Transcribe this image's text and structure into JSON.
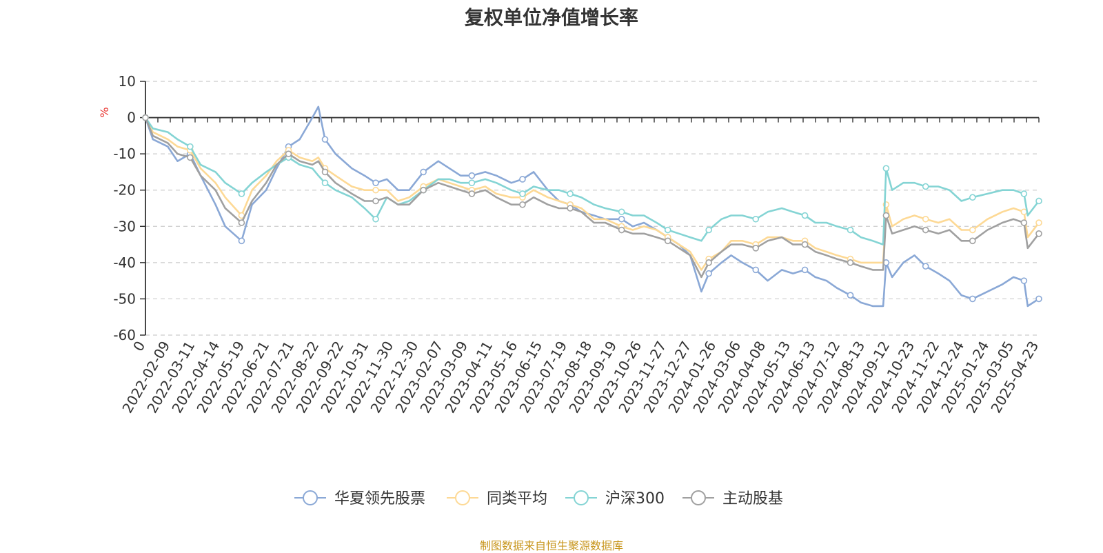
{
  "title": "复权单位净值增长率",
  "source": "制图数据来自恒生聚源数据库",
  "colors": {
    "华夏领先股票": "#8aa8d6",
    "同类平均": "#fdd995",
    "沪深300": "#84d4d4",
    "主动股基": "#a0a0a0",
    "unit": "#e8322d"
  },
  "chart_data": {
    "type": "line",
    "title": "复权单位净值增长率",
    "ylabel": "%",
    "ylim": [
      -60,
      10
    ],
    "yticks": [
      10,
      0,
      -10,
      -20,
      -30,
      -40,
      -50,
      -60
    ],
    "grid": true,
    "legend_position": "bottom",
    "x_tick_labels": [
      "0",
      "2022-02-09",
      "2022-03-11",
      "2022-04-14",
      "2022-05-19",
      "2022-06-21",
      "2022-07-21",
      "2022-08-22",
      "2022-09-22",
      "2022-10-31",
      "2022-11-30",
      "2022-12-30",
      "2023-02-07",
      "2023-03-09",
      "2023-04-11",
      "2023-05-16",
      "2023-06-15",
      "2023-07-19",
      "2023-08-18",
      "2023-09-19",
      "2023-10-26",
      "2023-11-27",
      "2023-12-27",
      "2024-01-26",
      "2024-03-06",
      "2024-04-08",
      "2024-05-13",
      "2024-06-13",
      "2024-07-12",
      "2024-08-13",
      "2024-09-12",
      "2024-10-23",
      "2024-11-22",
      "2024-12-24",
      "2025-01-24",
      "2025-03-05",
      "2025-04-23"
    ],
    "x": [
      "2022-01-10",
      "2022-01-20",
      "2022-02-09",
      "2022-02-22",
      "2022-03-11",
      "2022-03-25",
      "2022-04-14",
      "2022-04-27",
      "2022-05-19",
      "2022-06-02",
      "2022-06-21",
      "2022-07-05",
      "2022-07-21",
      "2022-08-05",
      "2022-08-22",
      "2022-08-30",
      "2022-09-08",
      "2022-09-22",
      "2022-10-14",
      "2022-10-31",
      "2022-11-15",
      "2022-11-30",
      "2022-12-15",
      "2022-12-30",
      "2023-01-18",
      "2023-02-07",
      "2023-02-22",
      "2023-03-09",
      "2023-03-24",
      "2023-04-11",
      "2023-04-26",
      "2023-05-16",
      "2023-05-31",
      "2023-06-15",
      "2023-07-04",
      "2023-07-19",
      "2023-08-03",
      "2023-08-18",
      "2023-09-04",
      "2023-09-19",
      "2023-10-11",
      "2023-10-26",
      "2023-11-10",
      "2023-11-27",
      "2023-12-12",
      "2023-12-27",
      "2024-01-11",
      "2024-01-26",
      "2024-02-05",
      "2024-02-22",
      "2024-03-06",
      "2024-03-21",
      "2024-04-08",
      "2024-04-24",
      "2024-05-13",
      "2024-05-28",
      "2024-06-13",
      "2024-06-27",
      "2024-07-12",
      "2024-07-26",
      "2024-08-13",
      "2024-08-27",
      "2024-09-12",
      "2024-09-26",
      "2024-09-30",
      "2024-10-08",
      "2024-10-23",
      "2024-11-07",
      "2024-11-22",
      "2024-12-09",
      "2024-12-24",
      "2025-01-09",
      "2025-01-24",
      "2025-02-13",
      "2025-03-05",
      "2025-03-20",
      "2025-04-03",
      "2025-04-08",
      "2025-04-23"
    ],
    "series": [
      {
        "name": "华夏领先股票",
        "values": [
          0,
          -6,
          -8,
          -12,
          -10,
          -16,
          -24,
          -30,
          -34,
          -24,
          -20,
          -14,
          -8,
          -6,
          0,
          3,
          -6,
          -10,
          -14,
          -16,
          -18,
          -17,
          -20,
          -20,
          -15,
          -12,
          -14,
          -16,
          -16,
          -15,
          -16,
          -18,
          -17,
          -15,
          -20,
          -23,
          -24,
          -26,
          -27,
          -28,
          -28,
          -30,
          -29,
          -31,
          -33,
          -35,
          -38,
          -48,
          -43,
          -40,
          -38,
          -40,
          -42,
          -45,
          -42,
          -43,
          -42,
          -44,
          -45,
          -47,
          -49,
          -51,
          -52,
          -52,
          -40,
          -44,
          -40,
          -38,
          -41,
          -43,
          -45,
          -49,
          -50,
          -48,
          -46,
          -44,
          -45,
          -52,
          -50
        ]
      },
      {
        "name": "同类平均",
        "values": [
          0,
          -4,
          -6,
          -8,
          -9,
          -14,
          -18,
          -22,
          -27,
          -20,
          -16,
          -12,
          -9,
          -11,
          -12,
          -11,
          -14,
          -16,
          -19,
          -20,
          -20,
          -20,
          -23,
          -22,
          -19,
          -17,
          -18,
          -19,
          -20,
          -19,
          -21,
          -22,
          -22,
          -20,
          -22,
          -23,
          -24,
          -25,
          -28,
          -28,
          -30,
          -31,
          -30,
          -31,
          -33,
          -35,
          -37,
          -42,
          -39,
          -37,
          -34,
          -34,
          -35,
          -33,
          -33,
          -34,
          -34,
          -36,
          -37,
          -38,
          -39,
          -40,
          -40,
          -40,
          -24,
          -30,
          -28,
          -27,
          -28,
          -29,
          -28,
          -31,
          -31,
          -28,
          -26,
          -25,
          -26,
          -33,
          -29
        ]
      },
      {
        "name": "沪深300",
        "values": [
          0,
          -3,
          -4,
          -6,
          -8,
          -13,
          -15,
          -18,
          -21,
          -18,
          -15,
          -13,
          -11,
          -13,
          -14,
          -16,
          -18,
          -20,
          -22,
          -25,
          -28,
          -22,
          -24,
          -23,
          -20,
          -17,
          -17,
          -18,
          -18,
          -17,
          -18,
          -20,
          -21,
          -19,
          -20,
          -20,
          -21,
          -22,
          -24,
          -25,
          -26,
          -27,
          -27,
          -29,
          -31,
          -32,
          -33,
          -34,
          -31,
          -28,
          -27,
          -27,
          -28,
          -26,
          -25,
          -26,
          -27,
          -29,
          -29,
          -30,
          -31,
          -33,
          -34,
          -35,
          -14,
          -20,
          -18,
          -18,
          -19,
          -19,
          -20,
          -23,
          -22,
          -21,
          -20,
          -20,
          -21,
          -27,
          -23
        ]
      },
      {
        "name": "主动股基",
        "values": [
          0,
          -5,
          -7,
          -10,
          -11,
          -16,
          -20,
          -25,
          -29,
          -23,
          -18,
          -13,
          -10,
          -12,
          -13,
          -12,
          -15,
          -18,
          -21,
          -23,
          -23,
          -22,
          -24,
          -24,
          -20,
          -18,
          -19,
          -20,
          -21,
          -20,
          -22,
          -24,
          -24,
          -22,
          -24,
          -25,
          -25,
          -26,
          -29,
          -29,
          -31,
          -32,
          -32,
          -33,
          -34,
          -36,
          -38,
          -44,
          -40,
          -37,
          -35,
          -35,
          -36,
          -34,
          -33,
          -35,
          -35,
          -37,
          -38,
          -39,
          -40,
          -41,
          -42,
          -42,
          -27,
          -32,
          -31,
          -30,
          -31,
          -32,
          -31,
          -34,
          -34,
          -31,
          -29,
          -28,
          -29,
          -36,
          -32
        ]
      }
    ]
  }
}
